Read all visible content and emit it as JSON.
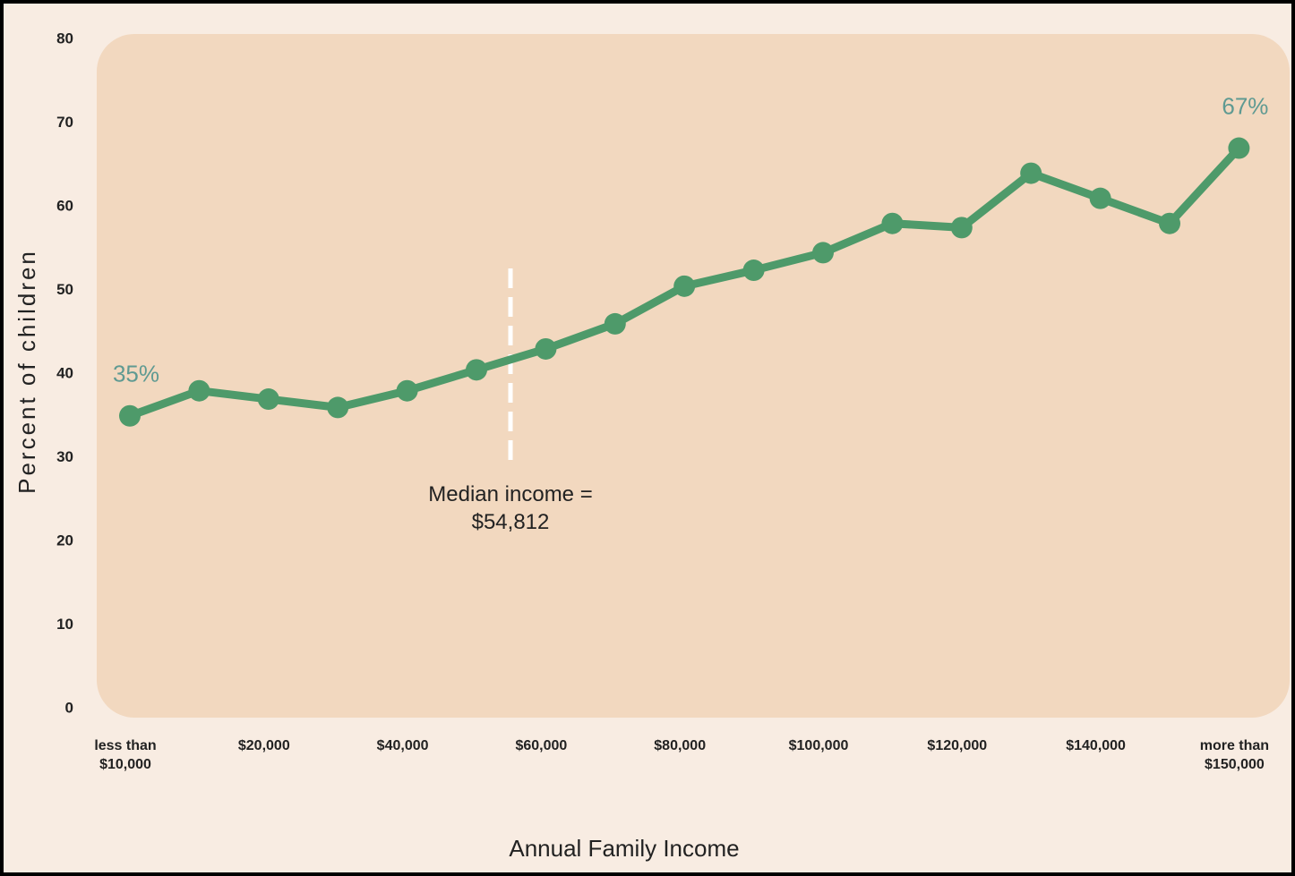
{
  "chart_data": {
    "type": "line",
    "categories": [
      "less than\n$10,000",
      null,
      "$20,000",
      null,
      "$40,000",
      null,
      "$60,000",
      null,
      "$80,000",
      null,
      "$100,000",
      null,
      "$120,000",
      null,
      "$140,000",
      null,
      "more than\n$150,000"
    ],
    "series": [
      {
        "name": "Percent of children",
        "color": "#4e9a6a",
        "values": [
          35,
          38,
          37,
          36,
          38,
          40.5,
          43,
          46,
          50.5,
          52.4,
          54.5,
          58,
          57.5,
          64,
          61,
          58,
          67
        ],
        "value_labels": [
          "35%",
          null,
          null,
          null,
          null,
          null,
          null,
          null,
          null,
          null,
          null,
          null,
          null,
          null,
          null,
          null,
          "67%"
        ]
      }
    ],
    "ylabel": "Percent of children",
    "xlabel": "Annual Family Income",
    "annotation": "Median income =\n$54,812",
    "ylim": [
      0,
      80
    ],
    "yticks": [
      0,
      10,
      20,
      30,
      40,
      50,
      60,
      70,
      80
    ]
  }
}
